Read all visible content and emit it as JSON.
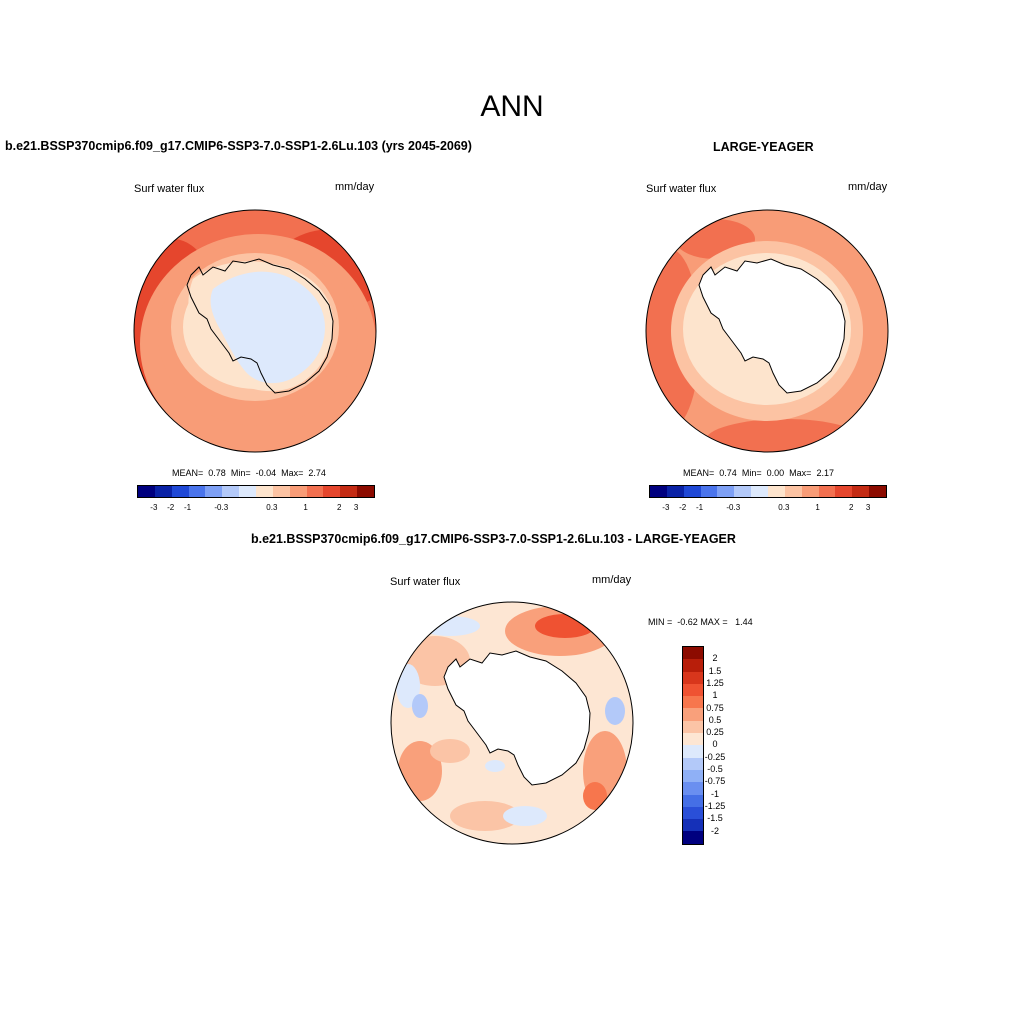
{
  "figure": {
    "title": "ANN"
  },
  "panels": [
    {
      "title": "b.e21.BSSP370cmip6.f09_g17.CMIP6-SSP3-7.0-SSP1-2.6Lu.103 (yrs 2045-2069)",
      "variable_label": "Surf water flux",
      "units_label": "mm/day",
      "stats": {
        "mean_label": "MEAN=",
        "mean": "0.78",
        "min_label": "Min=",
        "min": "-0.04",
        "max_label": "Max=",
        "max": "2.74"
      }
    },
    {
      "title": "LARGE-YEAGER",
      "variable_label": "Surf water flux",
      "units_label": "mm/day",
      "stats": {
        "mean_label": "MEAN=",
        "mean": "0.74",
        "min_label": "Min=",
        "min": "0.00",
        "max_label": "Max=",
        "max": "2.17"
      }
    },
    {
      "title": "b.e21.BSSP370cmip6.f09_g17.CMIP6-SSP3-7.0-SSP1-2.6Lu.103 - LARGE-YEAGER",
      "variable_label": "Surf water flux",
      "units_label": "mm/day",
      "stats": {
        "min_label": "MIN =",
        "min": "-0.62",
        "max_label": "MAX =",
        "max": "1.44"
      }
    }
  ],
  "chart_data": [
    {
      "type": "heatmap",
      "projection": "south-polar stereographic",
      "region": "Southern Ocean / Antarctica",
      "variable": "Surf water flux",
      "units": "mm/day",
      "stats": {
        "mean": 0.78,
        "min": -0.04,
        "max": 2.74
      },
      "colorbar": {
        "orientation": "horizontal",
        "tick_labels": [
          "-3",
          "-2",
          "-1",
          "-0.3",
          "0.3",
          "1",
          "2",
          "3"
        ],
        "colors": [
          "#00007f",
          "#0a22a6",
          "#1f48d6",
          "#4a74ec",
          "#7ea0f5",
          "#b3c9f9",
          "#dde9fc",
          "#fde4cd",
          "#fcc3a3",
          "#f89c77",
          "#f27050",
          "#e5462d",
          "#c42b14",
          "#8c0b00"
        ]
      }
    },
    {
      "type": "heatmap",
      "projection": "south-polar stereographic",
      "region": "Southern Ocean / Antarctica",
      "variable": "Surf water flux",
      "units": "mm/day",
      "stats": {
        "mean": 0.74,
        "min": 0.0,
        "max": 2.17
      },
      "colorbar": {
        "orientation": "horizontal",
        "tick_labels": [
          "-3",
          "-2",
          "-1",
          "-0.3",
          "0.3",
          "1",
          "2",
          "3"
        ],
        "colors": [
          "#00007f",
          "#0a22a6",
          "#1f48d6",
          "#4a74ec",
          "#7ea0f5",
          "#b3c9f9",
          "#dde9fc",
          "#fde4cd",
          "#fcc3a3",
          "#f89c77",
          "#f27050",
          "#e5462d",
          "#c42b14",
          "#8c0b00"
        ]
      }
    },
    {
      "type": "heatmap",
      "projection": "south-polar stereographic",
      "region": "Southern Ocean / Antarctica",
      "variable": "Surf water flux",
      "units": "mm/day",
      "stats": {
        "min": -0.62,
        "max": 1.44
      },
      "colorbar": {
        "orientation": "vertical",
        "tick_labels": [
          "2",
          "1.5",
          "1.25",
          "1",
          "0.75",
          "0.5",
          "0.25",
          "0",
          "-0.25",
          "-0.5",
          "-0.75",
          "-1",
          "-1.25",
          "-1.5",
          "-2"
        ],
        "colors": [
          "#8c0b00",
          "#b81e0a",
          "#d8361c",
          "#ef5232",
          "#f7764d",
          "#f9a07b",
          "#fbc4a6",
          "#fde6d3",
          "#dde9fc",
          "#b3c9f9",
          "#8fb0f6",
          "#6a8ff0",
          "#456fe6",
          "#2a4fd8",
          "#1530b8",
          "#00007f"
        ]
      }
    }
  ]
}
